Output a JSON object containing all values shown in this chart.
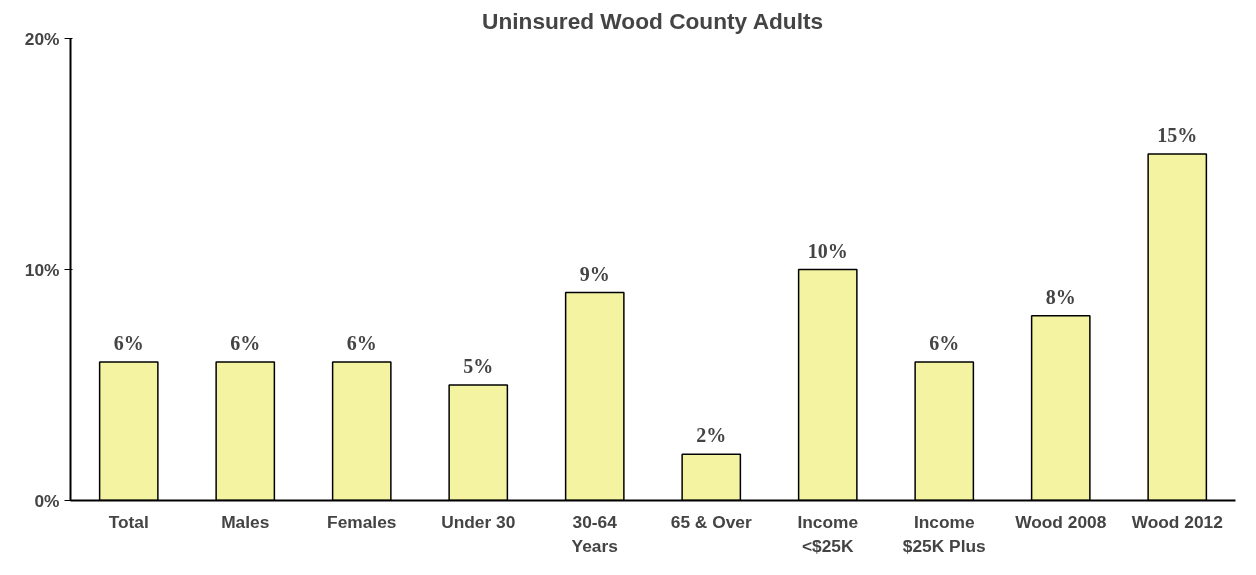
{
  "chart_data": {
    "type": "bar",
    "title": "Uninsured Wood County Adults",
    "categories": [
      "Total",
      "Males",
      "Females",
      "Under 30",
      "30-64\nYears",
      "65 & Over",
      "Income\n<$25K",
      "Income\n$25K Plus",
      "Wood 2008",
      "Wood 2012"
    ],
    "values": [
      6,
      6,
      6,
      5,
      9,
      2,
      10,
      6,
      8,
      15
    ],
    "value_labels": [
      "6%",
      "6%",
      "6%",
      "5%",
      "9%",
      "2%",
      "10%",
      "6%",
      "8%",
      "15%"
    ],
    "color": "#f3f3a2",
    "ylim": [
      0,
      20
    ],
    "yticks": [
      {
        "value": 0,
        "label": "0%"
      },
      {
        "value": 10,
        "label": "10%"
      },
      {
        "value": 20,
        "label": "20%"
      }
    ],
    "grid": false
  }
}
